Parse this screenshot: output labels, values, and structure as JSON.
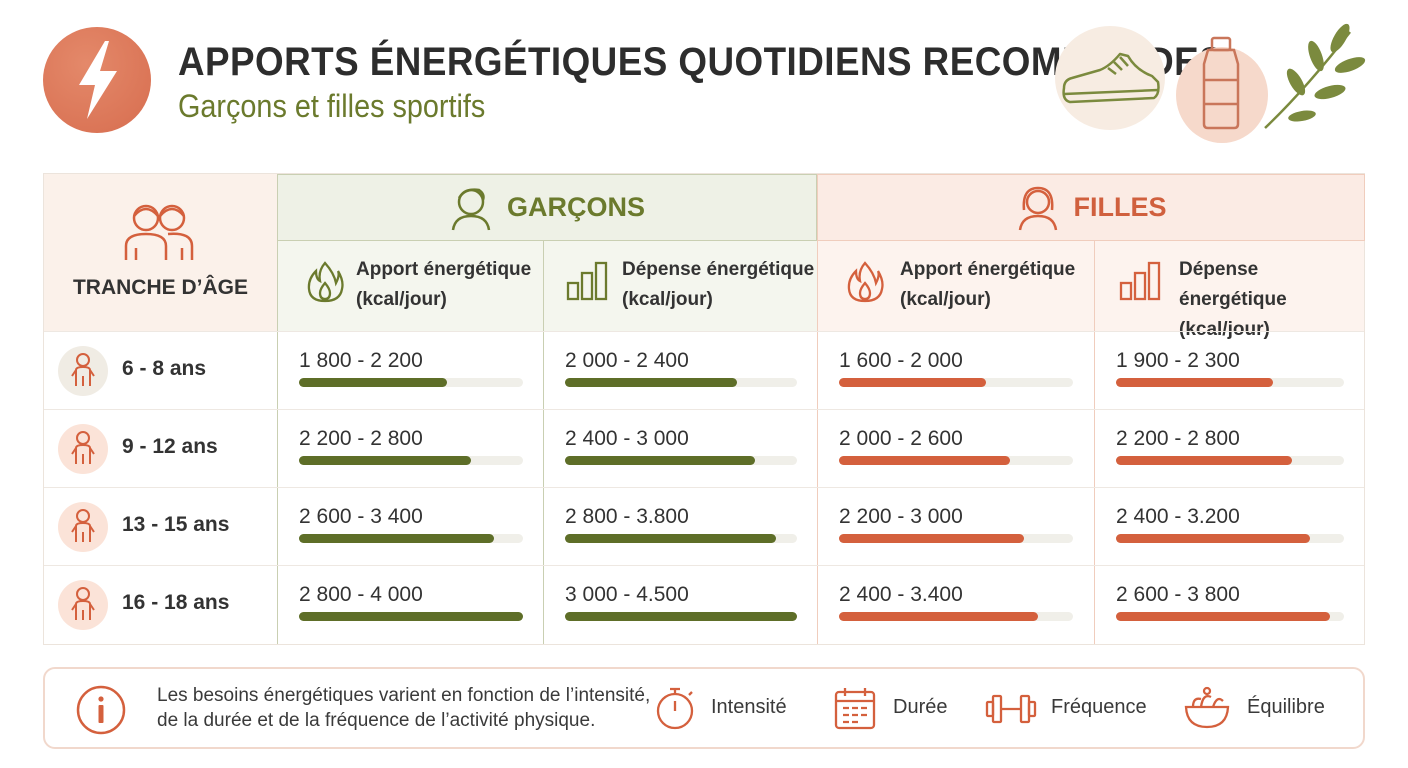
{
  "header": {
    "title": "APPORTS ÉNERGÉTIQUES QUOTIDIENS RECOMMANDES",
    "subtitle": "Garçons et filles sportifs",
    "logo_icon": "lightning-icon",
    "decorations": [
      "sneaker-icon",
      "water-bottle-icon",
      "leaf-branch-icon"
    ]
  },
  "colors": {
    "boys": "#5e6e28",
    "girls": "#d4603d",
    "boys_bg": "#eef1e6",
    "girls_bg": "#fbebe4"
  },
  "table": {
    "age_header": "TRANCHE D’ÂGE",
    "boys_header": "GARÇONS",
    "girls_header": "FILLES",
    "columns": {
      "boys_apport_l1": "Apport énergétique",
      "boys_apport_l2": "(kcal/jour)",
      "boys_depense_l1": "Dépense énergétique",
      "boys_depense_l2": "(kcal/jour)",
      "girls_apport_l1": "Apport énergétique",
      "girls_apport_l2": "(kcal/jour)",
      "girls_depense_l1": "Dépense énergétique",
      "girls_depense_l2": "(kcal/jour)"
    },
    "rows": [
      {
        "age": "6 - 8 ans",
        "boys_apport": "1 800 - 2 200",
        "boys_apport_level": 0.66,
        "boys_depense": "2 000 - 2 400",
        "boys_depense_level": 0.74,
        "girls_apport": "1 600 - 2 000",
        "girls_apport_level": 0.63,
        "girls_depense": "1 900 - 2 300",
        "girls_depense_level": 0.69
      },
      {
        "age": "9 - 12 ans",
        "boys_apport": "2 200 - 2 800",
        "boys_apport_level": 0.77,
        "boys_depense": "2 400 - 3 000",
        "boys_depense_level": 0.82,
        "girls_apport": "2 000 - 2 600",
        "girls_apport_level": 0.73,
        "girls_depense": "2 200 - 2 800",
        "girls_depense_level": 0.77
      },
      {
        "age": "13 - 15 ans",
        "boys_apport": "2 600 - 3 400",
        "boys_apport_level": 0.87,
        "boys_depense": "2 800 - 3.800",
        "boys_depense_level": 0.91,
        "girls_apport": "2 200 - 3 000",
        "girls_apport_level": 0.79,
        "girls_depense": "2 400 - 3.200",
        "girls_depense_level": 0.85
      },
      {
        "age": "16 - 18 ans",
        "boys_apport": "2 800 - 4 000",
        "boys_apport_level": 1.0,
        "boys_depense": "3 000 - 4.500",
        "boys_depense_level": 1.0,
        "girls_apport": "2 400 - 3.400",
        "girls_apport_level": 0.85,
        "girls_depense": "2 600 - 3 800",
        "girls_depense_level": 0.94
      }
    ]
  },
  "footer": {
    "note_l1": "Les besoins énergétiques varient en fonction de l’intensité,",
    "note_l2": "de la durée et de la fréquence de l’activité physique.",
    "factors": [
      {
        "label": "Intensité",
        "icon": "stopwatch-icon"
      },
      {
        "label": "Durée",
        "icon": "calendar-icon"
      },
      {
        "label": "Fréquence",
        "icon": "dumbbell-icon"
      },
      {
        "label": "Équilibre",
        "icon": "salad-bowl-icon"
      }
    ]
  }
}
